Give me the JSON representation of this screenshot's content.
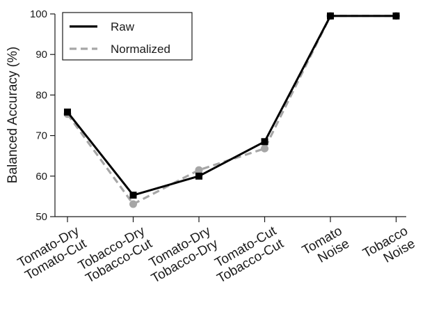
{
  "chart_data": {
    "type": "line",
    "title": "",
    "xlabel": "",
    "ylabel": "Balanced Accuracy (%)",
    "ylim": [
      50,
      100
    ],
    "yticks": [
      50,
      60,
      70,
      80,
      90,
      100
    ],
    "grid": false,
    "legend_position": "top-left",
    "categories": [
      [
        "Tomato-Dry",
        "Tomato-Cut"
      ],
      [
        "Tobacco-Dry",
        "Tobacco-Cut"
      ],
      [
        "Tomato-Dry",
        "Tobacco-Dry"
      ],
      [
        "Tomato-Cut",
        "Tobacco-Cut"
      ],
      [
        "Tomato",
        "Noise"
      ],
      [
        "Tobacco",
        "Noise"
      ]
    ],
    "series": [
      {
        "name": "Raw",
        "color": "#000000",
        "line_style": "solid",
        "marker": "square",
        "values": [
          75.8,
          55.3,
          60.0,
          68.5,
          99.5,
          99.5
        ]
      },
      {
        "name": "Normalized",
        "color": "#a6a6a6",
        "line_style": "dashed",
        "marker": "circle",
        "values": [
          75.3,
          53.1,
          61.5,
          66.8,
          99.5,
          99.5
        ]
      }
    ]
  }
}
